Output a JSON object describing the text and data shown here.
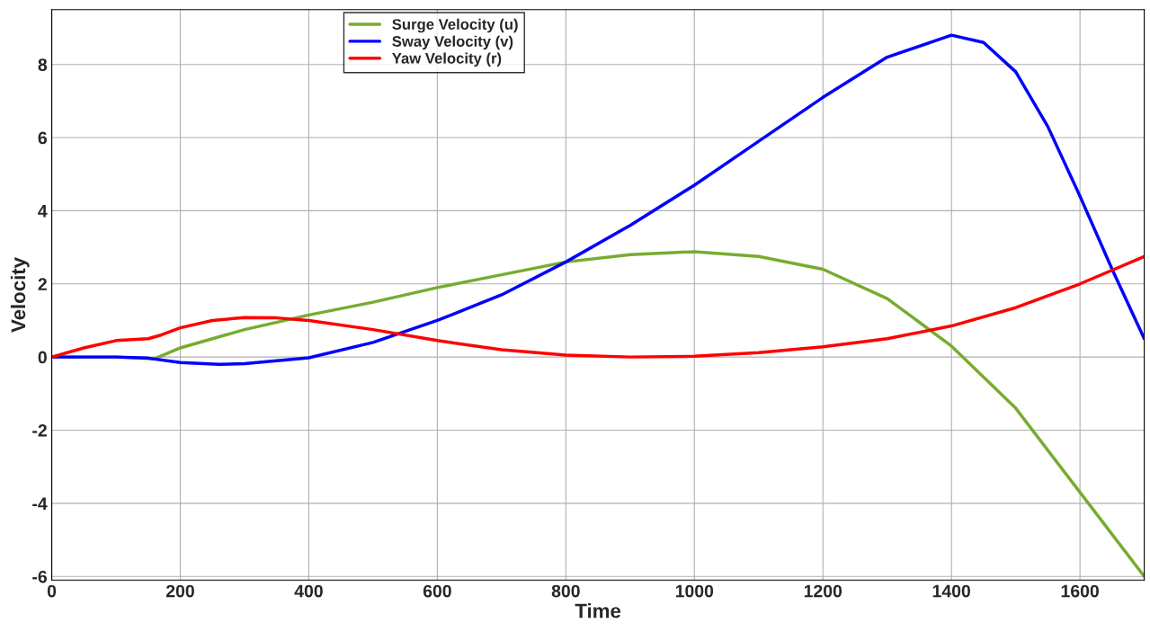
{
  "chart_data": {
    "type": "line",
    "xlabel": "Time",
    "ylabel": "Velocity",
    "xlim": [
      0,
      1700
    ],
    "ylim": [
      -6.1,
      9.5
    ],
    "xticks": [
      0,
      200,
      400,
      600,
      800,
      1000,
      1200,
      1400,
      1600
    ],
    "yticks": [
      -6,
      -4,
      -2,
      0,
      2,
      4,
      6,
      8
    ],
    "grid": true,
    "legend": "top",
    "marker": "none",
    "line_style": "solid",
    "series": [
      {
        "name": "Surge Velocity (u)",
        "color": "#77ac30",
        "x": [
          0,
          100,
          160,
          200,
          300,
          400,
          500,
          600,
          700,
          800,
          900,
          1000,
          1100,
          1200,
          1300,
          1400,
          1500,
          1600,
          1700
        ],
        "values": [
          0,
          0,
          -0.05,
          0.25,
          0.75,
          1.15,
          1.5,
          1.9,
          2.25,
          2.6,
          2.8,
          2.88,
          2.75,
          2.4,
          1.6,
          0.3,
          -1.4,
          -3.7,
          -6.0
        ]
      },
      {
        "name": "Sway Velocity (v)",
        "color": "#0000ff",
        "x": [
          0,
          100,
          150,
          200,
          260,
          300,
          400,
          500,
          600,
          700,
          800,
          900,
          1000,
          1100,
          1200,
          1300,
          1400,
          1450,
          1500,
          1550,
          1600,
          1650,
          1700
        ],
        "values": [
          0,
          0,
          -0.03,
          -0.15,
          -0.2,
          -0.18,
          -0.02,
          0.4,
          1.0,
          1.7,
          2.6,
          3.6,
          4.7,
          5.9,
          7.1,
          8.2,
          8.8,
          8.6,
          7.8,
          6.3,
          4.4,
          2.4,
          0.5
        ]
      },
      {
        "name": "Yaw Velocity (r)",
        "color": "#ff0000",
        "x": [
          0,
          50,
          100,
          150,
          170,
          200,
          250,
          300,
          350,
          400,
          500,
          600,
          700,
          800,
          900,
          1000,
          1100,
          1200,
          1300,
          1400,
          1500,
          1600,
          1700
        ],
        "values": [
          0,
          0.25,
          0.45,
          0.5,
          0.6,
          0.8,
          1.0,
          1.08,
          1.07,
          1.0,
          0.75,
          0.45,
          0.2,
          0.05,
          0.0,
          0.02,
          0.12,
          0.28,
          0.5,
          0.85,
          1.35,
          2.0,
          2.75
        ]
      }
    ]
  }
}
